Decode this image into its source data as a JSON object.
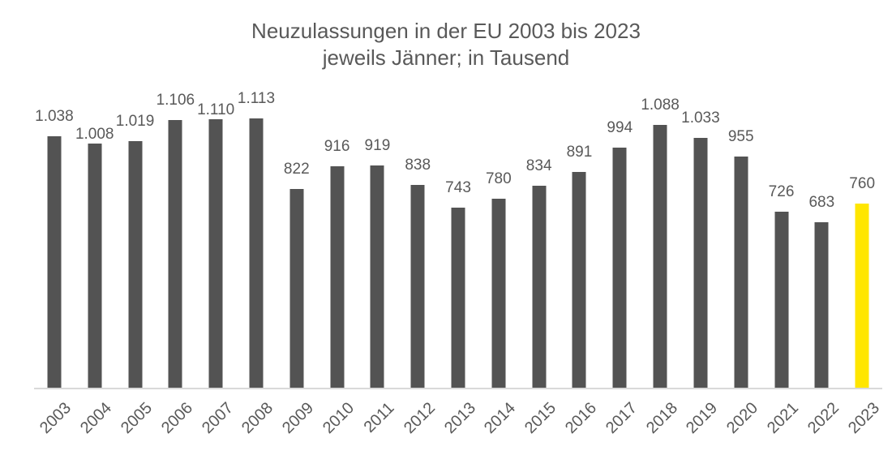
{
  "chart_data": {
    "type": "bar",
    "title": "Neuzulassungen in der EU 2003 bis 2023",
    "subtitle": "jeweils Jänner; in Tausend",
    "unit": "Tausend",
    "categories": [
      "2003",
      "2004",
      "2005",
      "2006",
      "2007",
      "2008",
      "2009",
      "2010",
      "2011",
      "2012",
      "2013",
      "2014",
      "2015",
      "2016",
      "2017",
      "2018",
      "2019",
      "2020",
      "2021",
      "2022",
      "2023"
    ],
    "values": [
      1038,
      1008,
      1019,
      1106,
      1110,
      1113,
      822,
      916,
      919,
      838,
      743,
      780,
      834,
      891,
      994,
      1088,
      1033,
      955,
      726,
      683,
      760
    ],
    "labels": [
      "1.038",
      "1.008",
      "1.019",
      "1.106",
      "1.110",
      "1.113",
      "822",
      "916",
      "919",
      "838",
      "743",
      "780",
      "834",
      "891",
      "994",
      "1.088",
      "1.033",
      "955",
      "726",
      "683",
      "760"
    ],
    "bar_color": "#535353",
    "highlight_color": "#FFE600",
    "highlight_index": 20,
    "text_color": "#595959",
    "axis_line_color": "#d9d9d9",
    "ylim": [
      0,
      1150
    ],
    "grid": false,
    "legend": false,
    "x_tick_rotation_deg": 45,
    "label_dy": [
      0,
      13,
      0,
      0,
      13,
      0,
      0,
      0,
      0,
      0,
      0,
      0,
      0,
      0,
      0,
      0,
      0,
      0,
      0,
      0,
      0
    ]
  }
}
